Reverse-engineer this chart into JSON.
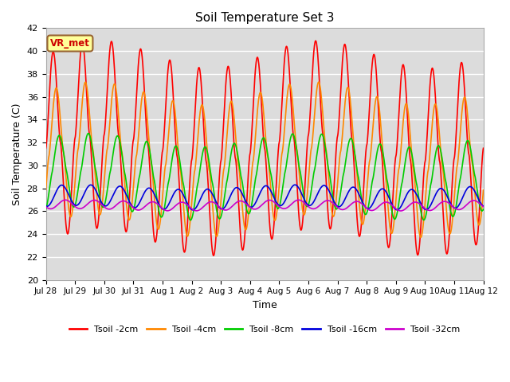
{
  "title": "Soil Temperature Set 3",
  "xlabel": "Time",
  "ylabel": "Soil Temperature (C)",
  "ylim": [
    20,
    42
  ],
  "yticks": [
    20,
    22,
    24,
    26,
    28,
    30,
    32,
    34,
    36,
    38,
    40,
    42
  ],
  "plot_bg_color": "#dcdcdc",
  "fig_bg_color": "#ffffff",
  "grid_color": "#ffffff",
  "annotation_label": "VR_met",
  "annotation_bg": "#ffff99",
  "annotation_border": "#996633",
  "series": [
    {
      "label": "Tsoil -2cm",
      "color": "#ff0000"
    },
    {
      "label": "Tsoil -4cm",
      "color": "#ff8800"
    },
    {
      "label": "Tsoil -8cm",
      "color": "#00cc00"
    },
    {
      "label": "Tsoil -16cm",
      "color": "#0000dd"
    },
    {
      "label": "Tsoil -32cm",
      "color": "#cc00cc"
    }
  ],
  "xtick_dates": [
    "Jul 28",
    "Jul 29",
    "Jul 30",
    "Jul 31",
    "Aug 1",
    "Aug 2",
    "Aug 3",
    "Aug 4",
    "Aug 5",
    "Aug 6",
    "Aug 7",
    "Aug 8",
    "Aug 9",
    "Aug 10",
    "Aug 11",
    "Aug 12"
  ],
  "xtick_positions": [
    0,
    1,
    2,
    3,
    4,
    5,
    6,
    7,
    8,
    9,
    10,
    11,
    12,
    13,
    14,
    15
  ]
}
